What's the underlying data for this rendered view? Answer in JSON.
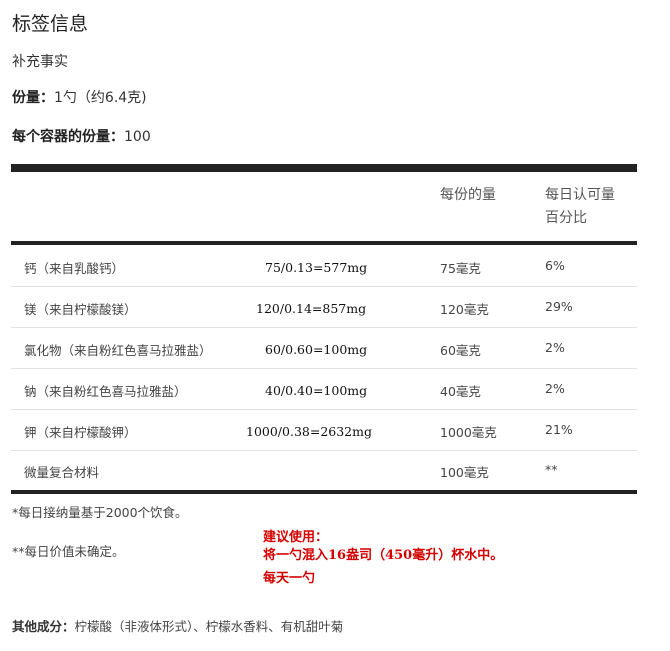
{
  "title": "标签信息",
  "subtitle": "补充事实",
  "serving": {
    "label": "份量：",
    "value": "1勺（约6.4克)"
  },
  "per_container": {
    "label": "每个容器的份量：",
    "value": "100"
  },
  "table": {
    "col_amount": "每份的量",
    "col_dv_line1": "每日认可量",
    "col_dv_line2": "百分比",
    "rows": [
      {
        "name": "钙（来自乳酸钙）",
        "calc": "75/0.13=577mg",
        "amount": "75毫克",
        "dv": "6%"
      },
      {
        "name": "镁（来自柠檬酸镁）",
        "calc": "120/0.14=857mg",
        "amount": "120毫克",
        "dv": "29%"
      },
      {
        "name": "氯化物（来自粉红色喜马拉雅盐）",
        "calc": "60/0.60=100mg",
        "amount": "60毫克",
        "dv": "2%"
      },
      {
        "name": "钠（来自粉红色喜马拉雅盐）",
        "calc": "40/0.40=100mg",
        "amount": "40毫克",
        "dv": "2%"
      },
      {
        "name": "钾（来自柠檬酸钾）",
        "calc": "1000/0.38=2632mg",
        "amount": "1000毫克",
        "dv": "21%"
      },
      {
        "name": "微量复合材料",
        "calc": "",
        "amount": "100毫克",
        "dv": "**"
      }
    ]
  },
  "footnotes": {
    "note1": "*每日接纳量基于2000个饮食。",
    "note2": "**每日价值未确定。"
  },
  "suggested_use": {
    "line1": "建议使用：",
    "line2": "将一勺混入16盎司（450毫升）杯水中。",
    "line3": "每天一勺"
  },
  "other_ingredients": {
    "label": "其他成分：",
    "value": "柠檬酸（非液体形式）、柠檬水香料、有机甜叶菊"
  },
  "colors": {
    "rule": "#222222",
    "note_red": "#d40000"
  }
}
